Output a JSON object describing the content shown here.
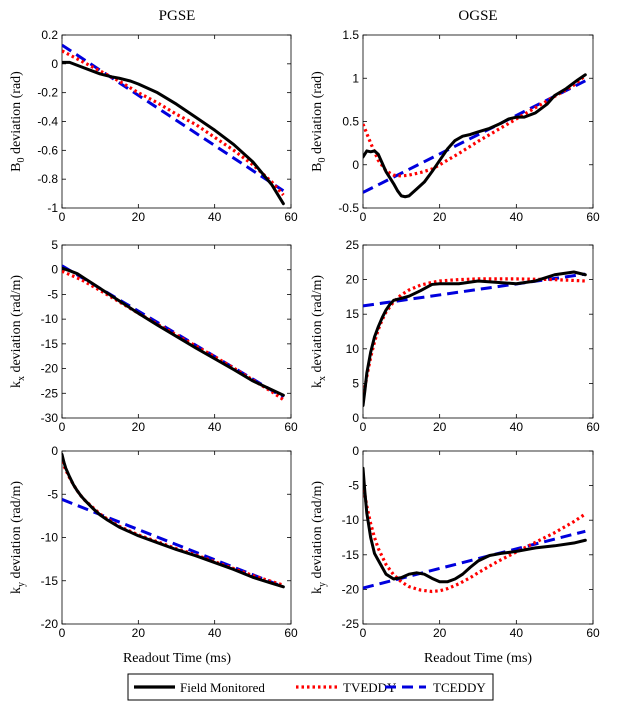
{
  "figure": {
    "column_titles": [
      "PGSE",
      "OGSE"
    ],
    "x_label": "Readout Time (ms)",
    "legend": [
      {
        "label": "Field Monitored",
        "color": "#000000",
        "style": "solid"
      },
      {
        "label": "TVEDDY",
        "color": "#ff0000",
        "style": "dotted"
      },
      {
        "label": "TCEDDY",
        "color": "#0000dd",
        "style": "dashed"
      }
    ]
  },
  "chart_data": [
    {
      "type": "line",
      "panel": "top-left",
      "column": "PGSE",
      "ylabel_main": "B",
      "ylabel_sub": "0",
      "ylabel_rest": " deviation (rad)",
      "xlim": [
        0,
        60
      ],
      "ylim": [
        -1,
        0.2
      ],
      "xticks": [
        0,
        20,
        40,
        60
      ],
      "xtick_labels": [
        "0",
        "20",
        "40",
        "60"
      ],
      "yticks": [
        -1,
        -0.8,
        -0.6,
        -0.4,
        -0.2,
        0,
        0.2
      ],
      "ytick_labels": [
        "-1",
        "-0.8",
        "-0.6",
        "-0.4",
        "-0.2",
        "0",
        "0.2"
      ],
      "series": [
        {
          "name": "Field Monitored",
          "x": [
            0,
            2,
            5,
            8,
            10,
            13,
            15,
            18,
            20,
            25,
            30,
            35,
            40,
            45,
            50,
            55,
            58
          ],
          "y": [
            0.01,
            0.01,
            -0.02,
            -0.05,
            -0.07,
            -0.09,
            -0.1,
            -0.12,
            -0.14,
            -0.2,
            -0.28,
            -0.37,
            -0.46,
            -0.56,
            -0.68,
            -0.84,
            -0.97
          ]
        },
        {
          "name": "TVEDDY",
          "x": [
            0,
            5,
            10,
            15,
            20,
            25,
            30,
            35,
            40,
            45,
            50,
            55,
            58
          ],
          "y": [
            0.09,
            0.02,
            -0.05,
            -0.12,
            -0.2,
            -0.27,
            -0.35,
            -0.42,
            -0.51,
            -0.6,
            -0.7,
            -0.82,
            -0.91
          ]
        },
        {
          "name": "TCEDDY",
          "x": [
            0,
            58
          ],
          "y": [
            0.13,
            -0.88
          ]
        }
      ]
    },
    {
      "type": "line",
      "panel": "top-right",
      "column": "OGSE",
      "ylabel_main": "B",
      "ylabel_sub": "0",
      "ylabel_rest": " deviation (rad)",
      "xlim": [
        0,
        60
      ],
      "ylim": [
        -0.5,
        1.5
      ],
      "xticks": [
        0,
        20,
        40,
        60
      ],
      "xtick_labels": [
        "0",
        "20",
        "40",
        "60"
      ],
      "yticks": [
        -0.5,
        0,
        0.5,
        1,
        1.5
      ],
      "ytick_labels": [
        "-0.5",
        "0",
        "0.5",
        "1",
        "1.5"
      ],
      "series": [
        {
          "name": "Field Monitored",
          "x": [
            0,
            1,
            2,
            3,
            4,
            5,
            6,
            7,
            8,
            9,
            10,
            11,
            12,
            14,
            16,
            18,
            20,
            22,
            24,
            26,
            28,
            30,
            33,
            36,
            38,
            40,
            42,
            45,
            48,
            50,
            53,
            56,
            58
          ],
          "y": [
            0.09,
            0.16,
            0.15,
            0.16,
            0.12,
            0.02,
            -0.08,
            -0.15,
            -0.22,
            -0.3,
            -0.36,
            -0.37,
            -0.36,
            -0.28,
            -0.2,
            -0.08,
            0.05,
            0.18,
            0.28,
            0.33,
            0.35,
            0.38,
            0.42,
            0.48,
            0.53,
            0.55,
            0.55,
            0.6,
            0.7,
            0.8,
            0.88,
            0.98,
            1.04
          ]
        },
        {
          "name": "TVEDDY",
          "x": [
            0,
            2,
            4,
            6,
            8,
            10,
            12,
            15,
            18,
            20,
            25,
            30,
            35,
            40,
            45,
            50,
            55,
            58
          ],
          "y": [
            0.47,
            0.25,
            0.05,
            -0.07,
            -0.12,
            -0.13,
            -0.12,
            -0.09,
            -0.05,
            0.0,
            0.13,
            0.27,
            0.4,
            0.53,
            0.66,
            0.79,
            0.92,
            1.03
          ]
        },
        {
          "name": "TCEDDY",
          "x": [
            0,
            58
          ],
          "y": [
            -0.32,
            0.97
          ]
        }
      ]
    },
    {
      "type": "line",
      "panel": "middle-left",
      "column": "PGSE",
      "ylabel_main": "k",
      "ylabel_sub": "x",
      "ylabel_rest": " deviation (rad/m)",
      "xlim": [
        0,
        60
      ],
      "ylim": [
        -30,
        5
      ],
      "xticks": [
        0,
        20,
        40,
        60
      ],
      "xtick_labels": [
        "0",
        "20",
        "40",
        "60"
      ],
      "yticks": [
        -30,
        -25,
        -20,
        -15,
        -10,
        -5,
        0,
        5
      ],
      "ytick_labels": [
        "-30",
        "-25",
        "-20",
        "-15",
        "-10",
        "-5",
        "0",
        "5"
      ],
      "series": [
        {
          "name": "Field Monitored",
          "x": [
            0,
            2,
            4,
            6,
            8,
            10,
            15,
            20,
            25,
            30,
            35,
            40,
            45,
            50,
            55,
            58
          ],
          "y": [
            0.3,
            -0.2,
            -0.8,
            -1.8,
            -2.8,
            -3.8,
            -6.3,
            -8.8,
            -11.2,
            -13.5,
            -15.8,
            -18.0,
            -20.2,
            -22.5,
            -24.3,
            -25.4
          ]
        },
        {
          "name": "TVEDDY",
          "x": [
            0,
            5,
            10,
            15,
            20,
            25,
            30,
            35,
            40,
            45,
            50,
            55,
            58
          ],
          "y": [
            -0.3,
            -2.0,
            -4.2,
            -6.5,
            -8.8,
            -11.0,
            -13.2,
            -15.4,
            -17.6,
            -19.9,
            -22.3,
            -24.7,
            -26.3
          ]
        },
        {
          "name": "TCEDDY",
          "x": [
            0,
            58
          ],
          "y": [
            0.8,
            -25.8
          ]
        }
      ]
    },
    {
      "type": "line",
      "panel": "middle-right",
      "column": "OGSE",
      "ylabel_main": "k",
      "ylabel_sub": "x",
      "ylabel_rest": " deviation (rad/m)",
      "xlim": [
        0,
        60
      ],
      "ylim": [
        0,
        25
      ],
      "xticks": [
        0,
        20,
        40,
        60
      ],
      "xtick_labels": [
        "0",
        "20",
        "40",
        "60"
      ],
      "yticks": [
        0,
        5,
        10,
        15,
        20,
        25
      ],
      "ytick_labels": [
        "0",
        "5",
        "10",
        "15",
        "20",
        "25"
      ],
      "series": [
        {
          "name": "Field Monitored",
          "x": [
            0,
            0.5,
            1,
            2,
            3,
            4,
            5,
            6,
            7,
            8,
            10,
            12,
            15,
            18,
            20,
            25,
            30,
            35,
            40,
            45,
            50,
            55,
            58
          ],
          "y": [
            1.8,
            4.0,
            6.5,
            9.5,
            11.7,
            13.2,
            14.5,
            15.6,
            16.4,
            17.0,
            17.3,
            17.6,
            18.4,
            19.3,
            19.4,
            19.4,
            19.8,
            19.6,
            19.4,
            19.8,
            20.7,
            21.1,
            20.7
          ]
        },
        {
          "name": "TVEDDY",
          "x": [
            0,
            1,
            2,
            3,
            4,
            5,
            6,
            8,
            10,
            12,
            15,
            18,
            20,
            25,
            30,
            40,
            50,
            58
          ],
          "y": [
            2.8,
            6.0,
            8.8,
            11.0,
            12.8,
            14.2,
            15.3,
            16.8,
            17.8,
            18.5,
            19.2,
            19.6,
            19.8,
            20.0,
            20.1,
            20.1,
            20.0,
            19.8
          ]
        },
        {
          "name": "TCEDDY",
          "x": [
            0,
            58
          ],
          "y": [
            16.2,
            20.8
          ]
        }
      ]
    },
    {
      "type": "line",
      "panel": "bottom-left",
      "column": "PGSE",
      "ylabel_main": "k",
      "ylabel_sub": "y",
      "ylabel_rest": " deviation (rad/m)",
      "xlim": [
        0,
        60
      ],
      "ylim": [
        -20,
        0
      ],
      "xticks": [
        0,
        20,
        40,
        60
      ],
      "xtick_labels": [
        "0",
        "20",
        "40",
        "60"
      ],
      "yticks": [
        -20,
        -15,
        -10,
        -5,
        0
      ],
      "ytick_labels": [
        "-20",
        "-15",
        "-10",
        "-5",
        "0"
      ],
      "series": [
        {
          "name": "Field Monitored",
          "x": [
            0,
            0.5,
            1,
            2,
            3,
            4,
            5,
            6,
            8,
            10,
            12,
            15,
            18,
            20,
            25,
            30,
            35,
            40,
            45,
            50,
            55,
            58
          ],
          "y": [
            -0.4,
            -1.3,
            -2.0,
            -3.0,
            -3.9,
            -4.6,
            -5.2,
            -5.7,
            -6.6,
            -7.4,
            -8.0,
            -8.8,
            -9.4,
            -9.8,
            -10.6,
            -11.4,
            -12.1,
            -12.9,
            -13.7,
            -14.6,
            -15.3,
            -15.7
          ]
        },
        {
          "name": "TVEDDY",
          "x": [
            0,
            1,
            2,
            3,
            4,
            5,
            6,
            8,
            10,
            12,
            15,
            18,
            20,
            25,
            30,
            35,
            40,
            45,
            50,
            55,
            58
          ],
          "y": [
            -1.2,
            -2.2,
            -3.1,
            -3.9,
            -4.6,
            -5.2,
            -5.7,
            -6.5,
            -7.3,
            -7.9,
            -8.7,
            -9.3,
            -9.7,
            -10.5,
            -11.3,
            -12.0,
            -12.8,
            -13.6,
            -14.4,
            -15.1,
            -15.5
          ]
        },
        {
          "name": "TCEDDY",
          "x": [
            0,
            58
          ],
          "y": [
            -5.6,
            -15.7
          ]
        }
      ]
    },
    {
      "type": "line",
      "panel": "bottom-right",
      "column": "OGSE",
      "ylabel_main": "k",
      "ylabel_sub": "y",
      "ylabel_rest": " deviation (rad/m)",
      "xlim": [
        0,
        60
      ],
      "ylim": [
        -25,
        0
      ],
      "xticks": [
        0,
        20,
        40,
        60
      ],
      "xtick_labels": [
        "0",
        "20",
        "40",
        "60"
      ],
      "yticks": [
        -25,
        -20,
        -15,
        -10,
        -5,
        0
      ],
      "ytick_labels": [
        "-25",
        "-20",
        "-15",
        "-10",
        "-5",
        "0"
      ],
      "series": [
        {
          "name": "Field Monitored",
          "x": [
            0,
            0.5,
            1,
            2,
            3,
            4,
            5,
            6,
            8,
            10,
            12,
            14,
            16,
            18,
            20,
            22,
            24,
            26,
            28,
            30,
            33,
            36,
            40,
            45,
            50,
            55,
            58
          ],
          "y": [
            -2.5,
            -6.0,
            -9.0,
            -12.5,
            -14.8,
            -15.8,
            -16.8,
            -17.8,
            -18.5,
            -18.3,
            -17.8,
            -17.6,
            -17.8,
            -18.4,
            -18.9,
            -18.9,
            -18.5,
            -17.8,
            -16.8,
            -15.9,
            -15.1,
            -14.8,
            -14.5,
            -14.0,
            -13.7,
            -13.3,
            -12.9
          ]
        },
        {
          "name": "TVEDDY",
          "x": [
            0,
            1,
            2,
            3,
            4,
            6,
            8,
            10,
            12,
            15,
            18,
            20,
            22,
            25,
            28,
            30,
            35,
            40,
            45,
            50,
            55,
            58
          ],
          "y": [
            -4.8,
            -8.0,
            -10.5,
            -12.5,
            -14.1,
            -16.4,
            -17.9,
            -18.9,
            -19.6,
            -20.1,
            -20.3,
            -20.2,
            -19.9,
            -19.2,
            -18.3,
            -17.6,
            -16.0,
            -14.6,
            -13.2,
            -11.8,
            -10.2,
            -9.1
          ]
        },
        {
          "name": "TCEDDY",
          "x": [
            0,
            58
          ],
          "y": [
            -19.8,
            -11.6
          ]
        }
      ]
    }
  ]
}
